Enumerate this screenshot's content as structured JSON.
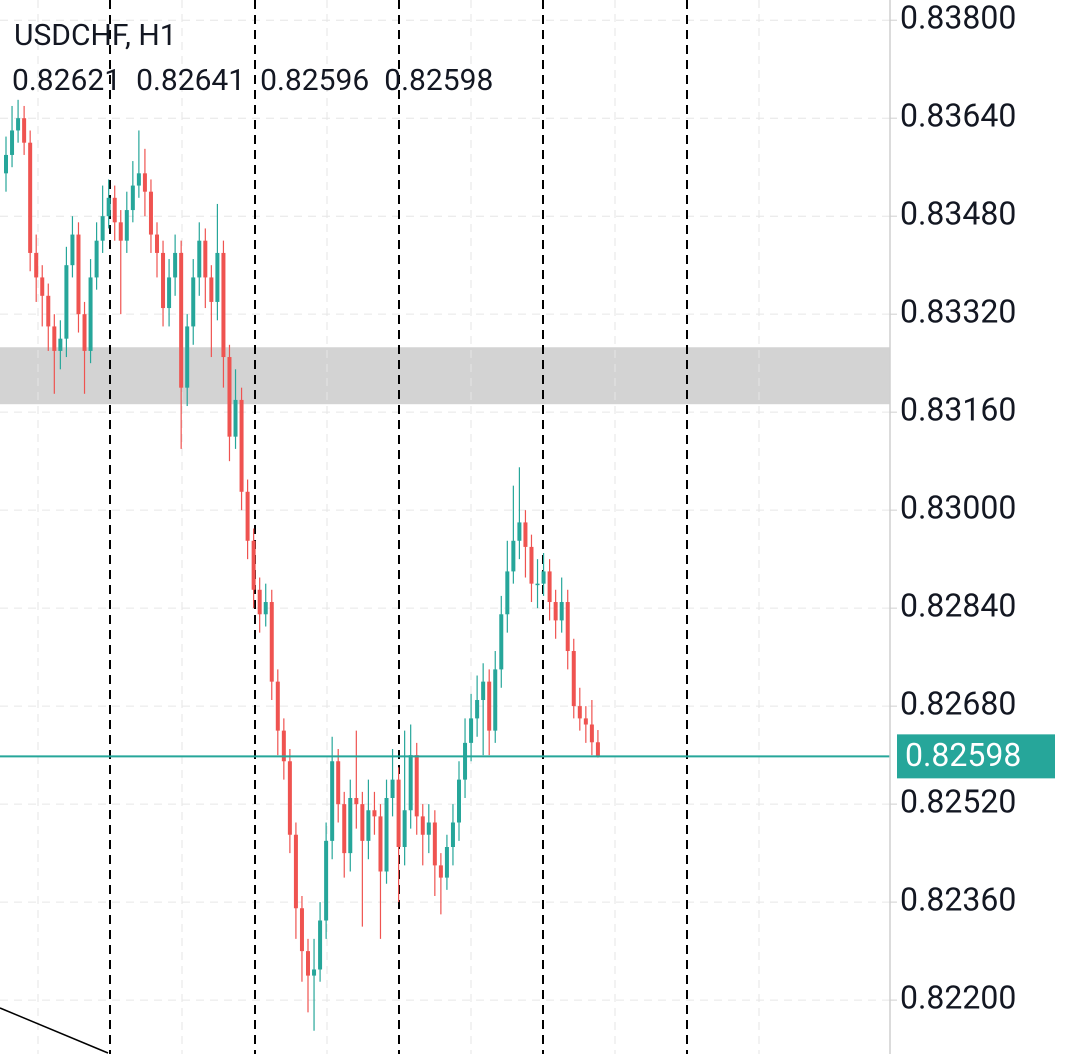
{
  "chart_data": {
    "type": "candlestick",
    "title": "USDCHF, H1",
    "up_color": "#26a69a",
    "down_color": "#ef5350",
    "zone": [
      0.83173,
      0.83266
    ],
    "zone_color": "#d3d3d3",
    "ylim": [
      0.82112,
      0.83833
    ],
    "yticks": [
      {
        "value": 0.838,
        "label": "0.83800"
      },
      {
        "value": 0.8364,
        "label": "0.83640"
      },
      {
        "value": 0.8348,
        "label": "0.83480"
      },
      {
        "value": 0.8332,
        "label": "0.83320"
      },
      {
        "value": 0.8316,
        "label": "0.83160"
      },
      {
        "value": 0.83,
        "label": "0.83000"
      },
      {
        "value": 0.8284,
        "label": "0.82840"
      },
      {
        "value": 0.8268,
        "label": "0.82680"
      },
      {
        "value": 0.8252,
        "label": "0.82520"
      },
      {
        "value": 0.8236,
        "label": "0.82360"
      },
      {
        "value": 0.822,
        "label": "0.82200"
      }
    ],
    "grid": true,
    "open": [
      0.8355,
      0.8358,
      0.8362,
      0.8364,
      0.836,
      0.8342,
      0.8338,
      0.8335,
      0.833,
      0.8326,
      0.8328,
      0.834,
      0.8345,
      0.8332,
      0.8326,
      0.8338,
      0.8344,
      0.8348,
      0.8351,
      0.8347,
      0.8344,
      0.8349,
      0.8353,
      0.8355,
      0.8352,
      0.8345,
      0.8342,
      0.8333,
      0.8338,
      0.8342,
      0.832,
      0.833,
      0.8338,
      0.8344,
      0.8338,
      0.8334,
      0.8342,
      0.8325,
      0.8312,
      0.8318,
      0.8303,
      0.8295,
      0.8287,
      0.8283,
      0.8285,
      0.8272,
      0.8264,
      0.8259,
      0.8247,
      0.8235,
      0.8228,
      0.8224,
      0.8225,
      0.8233,
      0.8246,
      0.8259,
      0.8252,
      0.8244,
      0.8253,
      0.8252,
      0.8246,
      0.8251,
      0.825,
      0.8241,
      0.8253,
      0.8256,
      0.8245,
      0.8251,
      0.826,
      0.825,
      0.8247,
      0.8249,
      0.8242,
      0.824,
      0.8245,
      0.8249,
      0.8256,
      0.8262,
      0.8266,
      0.8269,
      0.8272,
      0.8264,
      0.8274,
      0.8283,
      0.829,
      0.8295,
      0.8298,
      0.8294,
      0.8288,
      0.8288,
      0.829,
      0.8285,
      0.8282,
      0.8285,
      0.8277,
      0.8268,
      0.8266,
      0.8265,
      0.82621
    ],
    "high": [
      0.8361,
      0.8366,
      0.8367,
      0.8366,
      0.8362,
      0.8345,
      0.834,
      0.8337,
      0.8332,
      0.8331,
      0.8343,
      0.8348,
      0.8347,
      0.8334,
      0.8341,
      0.8347,
      0.8353,
      0.8354,
      0.8353,
      0.8349,
      0.8352,
      0.8357,
      0.8362,
      0.8359,
      0.8354,
      0.8347,
      0.8344,
      0.8341,
      0.8345,
      0.8344,
      0.8332,
      0.8341,
      0.8347,
      0.8346,
      0.834,
      0.835,
      0.8344,
      0.8327,
      0.8323,
      0.832,
      0.8305,
      0.8297,
      0.8289,
      0.8288,
      0.8287,
      0.8274,
      0.8266,
      0.8261,
      0.8249,
      0.8237,
      0.823,
      0.823,
      0.8236,
      0.8249,
      0.8263,
      0.8261,
      0.8254,
      0.8256,
      0.8264,
      0.8254,
      0.8256,
      0.8254,
      0.8252,
      0.8256,
      0.8261,
      0.8258,
      0.8264,
      0.8265,
      0.8262,
      0.8252,
      0.8252,
      0.8251,
      0.8244,
      0.8247,
      0.8252,
      0.8259,
      0.8266,
      0.827,
      0.8273,
      0.8275,
      0.8274,
      0.8277,
      0.8286,
      0.8295,
      0.8304,
      0.8307,
      0.83,
      0.8296,
      0.8292,
      0.8293,
      0.8292,
      0.8287,
      0.8289,
      0.8287,
      0.8279,
      0.8271,
      0.8268,
      0.8269,
      0.82641
    ],
    "low": [
      0.8352,
      0.8356,
      0.836,
      0.8358,
      0.8339,
      0.8334,
      0.833,
      0.8326,
      0.8319,
      0.8323,
      0.8325,
      0.8338,
      0.8329,
      0.8319,
      0.8324,
      0.8336,
      0.8342,
      0.8346,
      0.8344,
      0.8332,
      0.8342,
      0.8347,
      0.8351,
      0.8348,
      0.8342,
      0.8338,
      0.833,
      0.833,
      0.8335,
      0.831,
      0.8317,
      0.8327,
      0.8335,
      0.8333,
      0.8325,
      0.8331,
      0.832,
      0.8308,
      0.831,
      0.83,
      0.8292,
      0.8284,
      0.828,
      0.8281,
      0.8269,
      0.826,
      0.8256,
      0.8244,
      0.823,
      0.8223,
      0.8218,
      0.8215,
      0.8223,
      0.823,
      0.8243,
      0.8249,
      0.824,
      0.8241,
      0.8248,
      0.8232,
      0.8243,
      0.8247,
      0.823,
      0.8239,
      0.825,
      0.8236,
      0.8242,
      0.8248,
      0.8247,
      0.8242,
      0.8244,
      0.8237,
      0.8234,
      0.8238,
      0.8242,
      0.8246,
      0.8253,
      0.8259,
      0.8263,
      0.826,
      0.826,
      0.8262,
      0.8271,
      0.828,
      0.8288,
      0.8292,
      0.8289,
      0.8285,
      0.8284,
      0.8286,
      0.8282,
      0.8279,
      0.828,
      0.8274,
      0.8266,
      0.8264,
      0.8262,
      0.826,
      0.82596
    ],
    "close": [
      0.8358,
      0.8362,
      0.8364,
      0.836,
      0.8342,
      0.8338,
      0.8335,
      0.833,
      0.8326,
      0.8328,
      0.834,
      0.8345,
      0.8332,
      0.8326,
      0.8338,
      0.8344,
      0.8348,
      0.8351,
      0.8347,
      0.8344,
      0.8349,
      0.8353,
      0.8355,
      0.8352,
      0.8345,
      0.8342,
      0.8333,
      0.8338,
      0.8342,
      0.832,
      0.833,
      0.8338,
      0.8344,
      0.8338,
      0.8334,
      0.8342,
      0.8325,
      0.8312,
      0.8318,
      0.8303,
      0.8295,
      0.8287,
      0.8283,
      0.8285,
      0.8272,
      0.8264,
      0.8259,
      0.8247,
      0.8235,
      0.8228,
      0.8224,
      0.8225,
      0.8233,
      0.8246,
      0.8259,
      0.8252,
      0.8244,
      0.8253,
      0.8252,
      0.8246,
      0.8251,
      0.825,
      0.8241,
      0.8253,
      0.8256,
      0.8245,
      0.8251,
      0.826,
      0.825,
      0.8247,
      0.8249,
      0.8242,
      0.824,
      0.8245,
      0.8249,
      0.8256,
      0.8262,
      0.8266,
      0.8269,
      0.8272,
      0.8264,
      0.8274,
      0.8283,
      0.829,
      0.8295,
      0.8298,
      0.8294,
      0.8288,
      0.8288,
      0.829,
      0.8285,
      0.8282,
      0.8285,
      0.8277,
      0.8268,
      0.8266,
      0.8265,
      0.82621,
      0.82598
    ]
  }
}
